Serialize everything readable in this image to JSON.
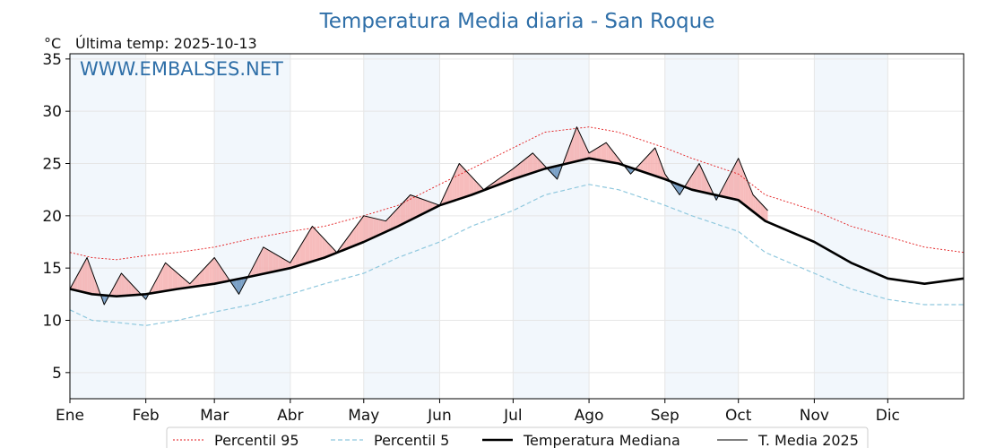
{
  "chart_data": {
    "type": "line",
    "title": "Temperatura Media diaria - San Roque",
    "unit_label": "°C",
    "last_temp_label": "Última temp: 2025-10-13",
    "watermark": "WWW.EMBALSES.NET",
    "ylim": [
      2.5,
      35.5
    ],
    "y_ticks": [
      5,
      10,
      15,
      20,
      25,
      30,
      35
    ],
    "x_range_days": [
      1,
      366
    ],
    "month_ticks": [
      {
        "label": "Ene",
        "day": 1
      },
      {
        "label": "Feb",
        "day": 32
      },
      {
        "label": "Mar",
        "day": 60
      },
      {
        "label": "Abr",
        "day": 91
      },
      {
        "label": "May",
        "day": 121
      },
      {
        "label": "Jun",
        "day": 152
      },
      {
        "label": "Jul",
        "day": 182
      },
      {
        "label": "Ago",
        "day": 213
      },
      {
        "label": "Sep",
        "day": 244
      },
      {
        "label": "Oct",
        "day": 274
      },
      {
        "label": "Nov",
        "day": 305
      },
      {
        "label": "Dic",
        "day": 335
      }
    ],
    "shaded_months": [
      [
        1,
        32
      ],
      [
        60,
        91
      ],
      [
        121,
        152
      ],
      [
        182,
        213
      ],
      [
        244,
        274
      ],
      [
        305,
        335
      ]
    ],
    "grid": true,
    "legend_position": "bottom",
    "series": [
      {
        "name": "Percentil 95",
        "color": "#e31a1c",
        "style": "dotted",
        "x": [
          1,
          10,
          20,
          32,
          45,
          60,
          75,
          91,
          105,
          121,
          135,
          152,
          165,
          182,
          195,
          213,
          225,
          244,
          255,
          274,
          285,
          305,
          320,
          335,
          350,
          366
        ],
        "y": [
          16.5,
          16.0,
          15.8,
          16.2,
          16.5,
          17.0,
          17.8,
          18.5,
          19.0,
          20.0,
          21.0,
          23.0,
          24.5,
          26.5,
          28.0,
          28.5,
          28.0,
          26.5,
          25.5,
          24.0,
          22.0,
          20.5,
          19.0,
          18.0,
          17.0,
          16.5
        ]
      },
      {
        "name": "Percentil 5",
        "color": "#8fc8de",
        "style": "dashed",
        "x": [
          1,
          10,
          20,
          32,
          45,
          60,
          75,
          91,
          105,
          121,
          135,
          152,
          165,
          182,
          195,
          213,
          225,
          244,
          255,
          274,
          285,
          305,
          320,
          335,
          350,
          366
        ],
        "y": [
          11.0,
          10.0,
          9.8,
          9.5,
          10.0,
          10.8,
          11.5,
          12.5,
          13.5,
          14.5,
          16.0,
          17.5,
          19.0,
          20.5,
          22.0,
          23.0,
          22.5,
          21.0,
          20.0,
          18.5,
          16.5,
          14.5,
          13.0,
          12.0,
          11.5,
          11.5
        ]
      },
      {
        "name": "Temperatura Mediana",
        "color": "#000000",
        "style": "thick",
        "x": [
          1,
          10,
          20,
          32,
          45,
          60,
          75,
          91,
          105,
          121,
          135,
          152,
          165,
          182,
          195,
          213,
          225,
          244,
          255,
          274,
          285,
          305,
          320,
          335,
          350,
          366
        ],
        "y": [
          13.0,
          12.5,
          12.3,
          12.5,
          13.0,
          13.5,
          14.2,
          15.0,
          16.0,
          17.5,
          19.0,
          21.0,
          22.0,
          23.5,
          24.5,
          25.5,
          25.0,
          23.5,
          22.5,
          21.5,
          19.5,
          17.5,
          15.5,
          14.0,
          13.5,
          14.0
        ]
      },
      {
        "name": "T. Media 2025",
        "color": "#000000",
        "style": "thin",
        "x": [
          1,
          8,
          15,
          22,
          32,
          40,
          50,
          60,
          70,
          80,
          91,
          100,
          110,
          121,
          130,
          140,
          152,
          160,
          170,
          182,
          190,
          200,
          208,
          213,
          220,
          230,
          240,
          244,
          250,
          258,
          265,
          274,
          280,
          286
        ],
        "y": [
          13.0,
          16.0,
          11.5,
          14.5,
          12.0,
          15.5,
          13.5,
          16.0,
          12.5,
          17.0,
          15.5,
          19.0,
          16.5,
          20.0,
          19.5,
          22.0,
          21.0,
          25.0,
          22.5,
          24.5,
          26.0,
          23.5,
          28.5,
          26.0,
          27.0,
          24.0,
          26.5,
          24.0,
          22.0,
          25.0,
          21.5,
          25.5,
          22.0,
          20.5
        ]
      }
    ]
  }
}
